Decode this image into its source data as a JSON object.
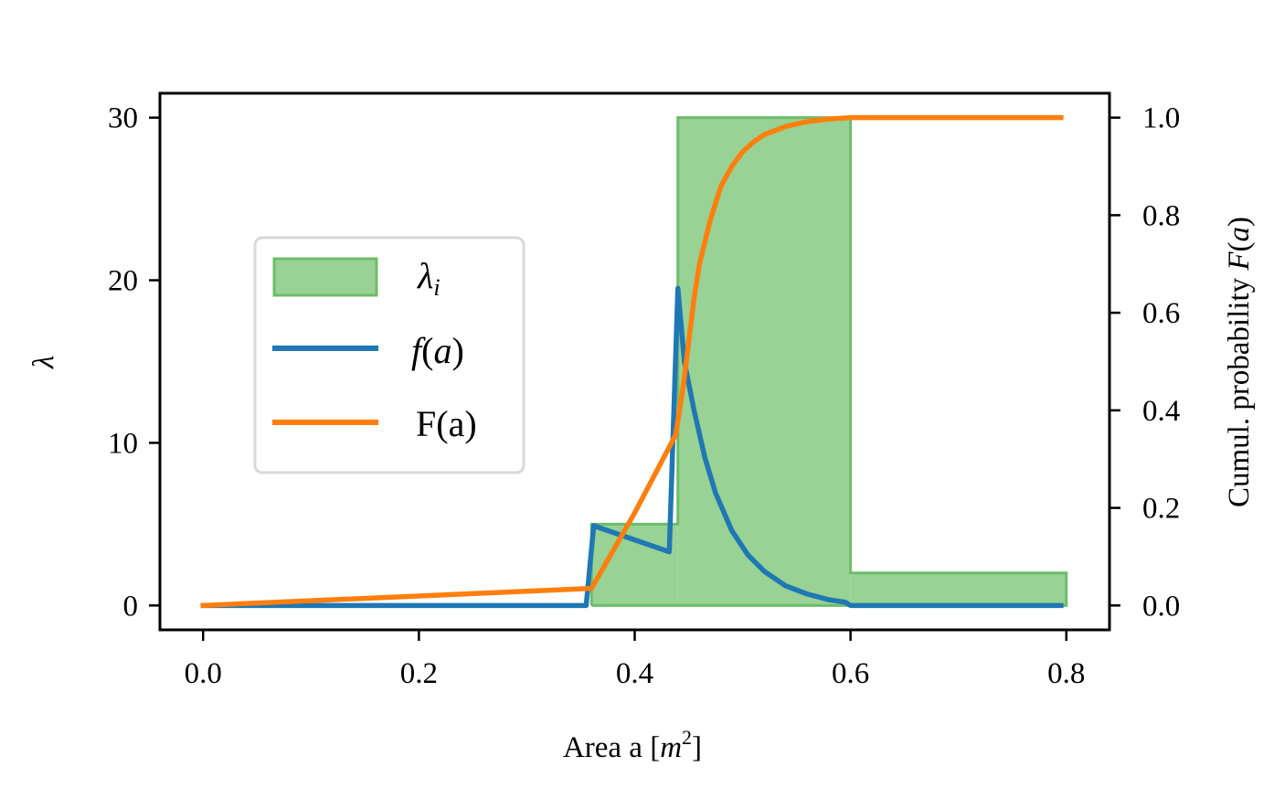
{
  "chart_data": {
    "type": "line",
    "xlabel": "Area a [m²]",
    "xlabel_parts": {
      "prefix": "Area a [",
      "var": "m",
      "sup": "2",
      "suffix": "]"
    },
    "ylabel_left": "λ",
    "ylabel_right": "Cumul. probability F(a)",
    "ylabel_right_parts": {
      "prefix": "Cumul. probability ",
      "func": "F",
      "arg": "a"
    },
    "xlim": [
      -0.04,
      0.84
    ],
    "ylim_left": [
      -1.5,
      31.5
    ],
    "ylim_right": [
      -0.05,
      1.05
    ],
    "xticks": [
      0.0,
      0.2,
      0.4,
      0.6,
      0.8
    ],
    "xtick_labels": [
      "0.0",
      "0.2",
      "0.4",
      "0.6",
      "0.8"
    ],
    "yticks_left": [
      0,
      10,
      20,
      30
    ],
    "ytick_labels_left": [
      "0",
      "10",
      "20",
      "30"
    ],
    "yticks_right": [
      0.0,
      0.2,
      0.4,
      0.6,
      0.8,
      1.0
    ],
    "ytick_labels_right": [
      "0.0",
      "0.2",
      "0.4",
      "0.6",
      "0.8",
      "1.0"
    ],
    "legend_position": "center-left",
    "series": [
      {
        "name": "λ_i",
        "kind": "step-area",
        "axis": "left",
        "color": "#98d294",
        "edge_color": "#6cbd6a",
        "steps": [
          {
            "x0": 0.36,
            "x1": 0.44,
            "y": 5
          },
          {
            "x0": 0.44,
            "x1": 0.6,
            "y": 30
          },
          {
            "x0": 0.6,
            "x1": 0.8,
            "y": 2
          }
        ]
      },
      {
        "name": "f(a)",
        "kind": "line",
        "axis": "left",
        "color": "#1f77b4",
        "x": [
          0.0,
          0.355,
          0.362,
          0.432,
          0.44,
          0.446,
          0.455,
          0.465,
          0.475,
          0.49,
          0.505,
          0.52,
          0.54,
          0.56,
          0.58,
          0.595,
          0.6,
          0.7,
          0.795
        ],
        "y": [
          0.0,
          0.0,
          4.9,
          3.3,
          19.5,
          15.0,
          12.0,
          9.1,
          6.9,
          4.6,
          3.1,
          2.1,
          1.2,
          0.7,
          0.35,
          0.2,
          0.0,
          0.0,
          0.0
        ]
      },
      {
        "name": "F(a)",
        "kind": "line",
        "axis": "right",
        "color": "#ff7f0e",
        "x": [
          0.0,
          0.36,
          0.4,
          0.438,
          0.445,
          0.45,
          0.455,
          0.46,
          0.47,
          0.48,
          0.49,
          0.5,
          0.51,
          0.52,
          0.54,
          0.56,
          0.58,
          0.6,
          0.65,
          0.7,
          0.795
        ],
        "y": [
          0.0,
          0.035,
          0.19,
          0.35,
          0.45,
          0.54,
          0.63,
          0.7,
          0.79,
          0.86,
          0.9,
          0.93,
          0.95,
          0.965,
          0.982,
          0.992,
          0.997,
          1.0,
          1.0,
          1.0,
          1.0
        ]
      }
    ],
    "legend": [
      {
        "key": "lambda_i",
        "label": "λ",
        "sub": "i"
      },
      {
        "key": "f_a",
        "label": "f",
        "arg": "a"
      },
      {
        "key": "F_a",
        "label": "F(a)"
      }
    ]
  }
}
